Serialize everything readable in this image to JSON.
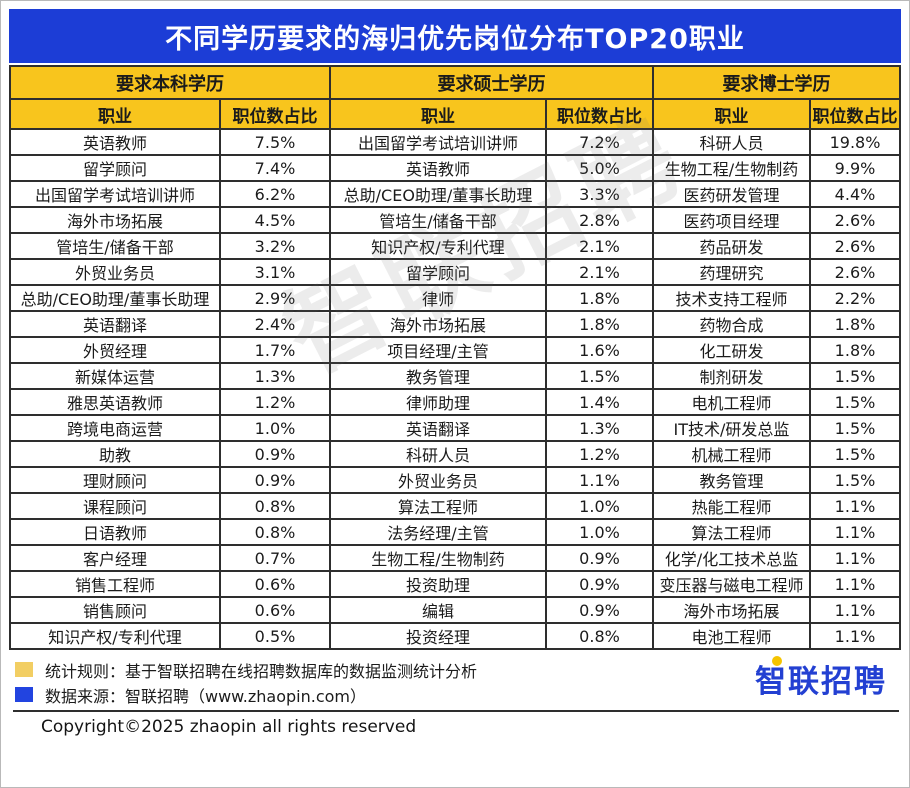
{
  "colors": {
    "title_bg": "#1c3dd6",
    "header_bg": "#f8c51d",
    "logo_blue": "#2340d2",
    "legend_yellow": "#f2ce63",
    "legend_blue": "#2244e0"
  },
  "chart_data": {
    "type": "table",
    "title": "不同学历要求的海归优先岗位分布TOP20职业",
    "sections": [
      {
        "header": "要求本科学历",
        "columns": [
          "职业",
          "职位数占比"
        ],
        "rows": [
          [
            "英语教师",
            "7.5%"
          ],
          [
            "留学顾问",
            "7.4%"
          ],
          [
            "出国留学考试培训讲师",
            "6.2%"
          ],
          [
            "海外市场拓展",
            "4.5%"
          ],
          [
            "管培生/储备干部",
            "3.2%"
          ],
          [
            "外贸业务员",
            "3.1%"
          ],
          [
            "总助/CEO助理/董事长助理",
            "2.9%"
          ],
          [
            "英语翻译",
            "2.4%"
          ],
          [
            "外贸经理",
            "1.7%"
          ],
          [
            "新媒体运营",
            "1.3%"
          ],
          [
            "雅思英语教师",
            "1.2%"
          ],
          [
            "跨境电商运营",
            "1.0%"
          ],
          [
            "助教",
            "0.9%"
          ],
          [
            "理财顾问",
            "0.9%"
          ],
          [
            "课程顾问",
            "0.8%"
          ],
          [
            "日语教师",
            "0.8%"
          ],
          [
            "客户经理",
            "0.7%"
          ],
          [
            "销售工程师",
            "0.6%"
          ],
          [
            "销售顾问",
            "0.6%"
          ],
          [
            "知识产权/专利代理",
            "0.5%"
          ]
        ]
      },
      {
        "header": "要求硕士学历",
        "columns": [
          "职业",
          "职位数占比"
        ],
        "rows": [
          [
            "出国留学考试培训讲师",
            "7.2%"
          ],
          [
            "英语教师",
            "5.0%"
          ],
          [
            "总助/CEO助理/董事长助理",
            "3.3%"
          ],
          [
            "管培生/储备干部",
            "2.8%"
          ],
          [
            "知识产权/专利代理",
            "2.1%"
          ],
          [
            "留学顾问",
            "2.1%"
          ],
          [
            "律师",
            "1.8%"
          ],
          [
            "海外市场拓展",
            "1.8%"
          ],
          [
            "项目经理/主管",
            "1.6%"
          ],
          [
            "教务管理",
            "1.5%"
          ],
          [
            "律师助理",
            "1.4%"
          ],
          [
            "英语翻译",
            "1.3%"
          ],
          [
            "科研人员",
            "1.2%"
          ],
          [
            "外贸业务员",
            "1.1%"
          ],
          [
            "算法工程师",
            "1.0%"
          ],
          [
            "法务经理/主管",
            "1.0%"
          ],
          [
            "生物工程/生物制药",
            "0.9%"
          ],
          [
            "投资助理",
            "0.9%"
          ],
          [
            "编辑",
            "0.9%"
          ],
          [
            "投资经理",
            "0.8%"
          ]
        ]
      },
      {
        "header": "要求博士学历",
        "columns": [
          "职业",
          "职位数占比"
        ],
        "rows": [
          [
            "科研人员",
            "19.8%"
          ],
          [
            "生物工程/生物制药",
            "9.9%"
          ],
          [
            "医药研发管理",
            "4.4%"
          ],
          [
            "医药项目经理",
            "2.6%"
          ],
          [
            "药品研发",
            "2.6%"
          ],
          [
            "药理研究",
            "2.6%"
          ],
          [
            "技术支持工程师",
            "2.2%"
          ],
          [
            "药物合成",
            "1.8%"
          ],
          [
            "化工研发",
            "1.8%"
          ],
          [
            "制剂研发",
            "1.5%"
          ],
          [
            "电机工程师",
            "1.5%"
          ],
          [
            "IT技术/研发总监",
            "1.5%"
          ],
          [
            "机械工程师",
            "1.5%"
          ],
          [
            "教务管理",
            "1.5%"
          ],
          [
            "热能工程师",
            "1.1%"
          ],
          [
            "算法工程师",
            "1.1%"
          ],
          [
            "化学/化工技术总监",
            "1.1%"
          ],
          [
            "变压器与磁电工程师",
            "1.1%"
          ],
          [
            "海外市场拓展",
            "1.1%"
          ],
          [
            "电池工程师",
            "1.1%"
          ]
        ]
      }
    ]
  },
  "watermark": "智联招聘",
  "footer": {
    "note_rule": "统计规则：基于智联招聘在线招聘数据库的数据监测统计分析",
    "note_source": "数据来源：智联招聘（www.zhaopin.com）",
    "copyright": "Copyright©2025 zhaopin all rights reserved",
    "logo": "智联招聘"
  }
}
